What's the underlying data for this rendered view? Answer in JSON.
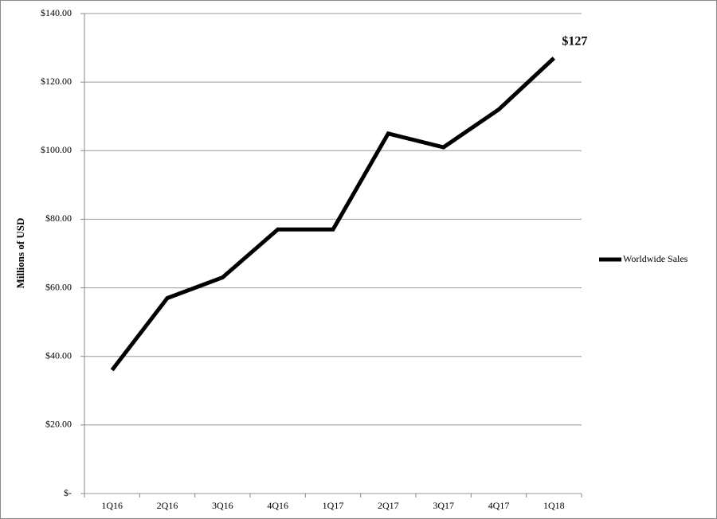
{
  "chart_data": {
    "type": "line",
    "y_label": "Millions of USD",
    "categories": [
      "1Q16",
      "2Q16",
      "3Q16",
      "4Q16",
      "1Q17",
      "2Q17",
      "3Q17",
      "4Q17",
      "1Q18"
    ],
    "series": [
      {
        "name": "Worldwide Sales",
        "color": "#000000",
        "values": [
          36,
          57,
          63,
          77,
          77,
          105,
          101,
          112,
          127
        ],
        "value_labels": [
          null,
          null,
          null,
          null,
          null,
          null,
          null,
          null,
          "$127"
        ]
      }
    ],
    "ylim": [
      0,
      140
    ],
    "yticks": [
      {
        "value": 0,
        "label": "$-"
      },
      {
        "value": 20,
        "label": "$20.00"
      },
      {
        "value": 40,
        "label": "$40.00"
      },
      {
        "value": 60,
        "label": "$60.00"
      },
      {
        "value": 80,
        "label": "$80.00"
      },
      {
        "value": 100,
        "label": "$100.00"
      },
      {
        "value": 120,
        "label": "$120.00"
      },
      {
        "value": 140,
        "label": "$140.00"
      }
    ],
    "grid": true,
    "legend": "right"
  }
}
